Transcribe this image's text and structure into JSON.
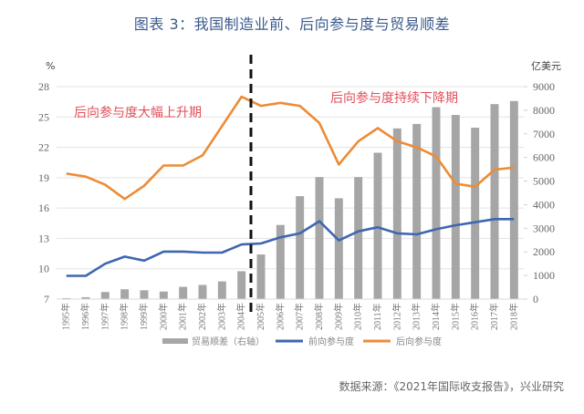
{
  "title": "图表 3：我国制造业前、后向参与度与贸易顺差",
  "source": "数据来源：《2021年国际收支报告》，兴业研究",
  "chart_data": {
    "type": "bar+line",
    "title": "图表 3：我国制造业前、后向参与度与贸易顺差",
    "categories": [
      "1995年",
      "1996年",
      "1997年",
      "1998年",
      "1999年",
      "2000年",
      "2001年",
      "2002年",
      "2003年",
      "2004年",
      "2005年",
      "2006年",
      "2007年",
      "2008年",
      "2009年",
      "2010年",
      "2011年",
      "2012年",
      "2013年",
      "2014年",
      "2015年",
      "2016年",
      "2017年",
      "2018年"
    ],
    "left_axis": {
      "label": "%",
      "ylim": [
        7,
        28
      ],
      "ticks": [
        7,
        10,
        13,
        16,
        19,
        22,
        25,
        28
      ]
    },
    "right_axis": {
      "label": "亿美元",
      "ylim": [
        0,
        9000
      ],
      "ticks": [
        0,
        1000,
        2000,
        3000,
        4000,
        5000,
        6000,
        7000,
        8000,
        9000
      ]
    },
    "series": [
      {
        "name": "贸易顺差（右轴）",
        "type": "bar",
        "axis": "right",
        "color": "#a6a6a6",
        "values": [
          40,
          80,
          300,
          415,
          375,
          320,
          520,
          600,
          750,
          1180,
          1890,
          3140,
          4360,
          5170,
          4270,
          5170,
          6200,
          7230,
          7420,
          8130,
          7800,
          7260,
          8260,
          8390
        ]
      },
      {
        "name": "前向参与度",
        "type": "line",
        "axis": "left",
        "color": "#3f66b0",
        "values": [
          9.3,
          9.3,
          10.5,
          11.2,
          10.8,
          11.7,
          11.7,
          11.6,
          11.6,
          12.4,
          12.5,
          13.1,
          13.5,
          14.7,
          12.8,
          13.7,
          14.1,
          13.5,
          13.4,
          13.9,
          14.3,
          14.6,
          14.9,
          14.9
        ]
      },
      {
        "name": "后向参与度",
        "type": "line",
        "axis": "left",
        "color": "#ed8b36",
        "values": [
          19.4,
          19.1,
          18.3,
          16.9,
          18.2,
          20.2,
          20.2,
          21.2,
          24.1,
          27.0,
          26.1,
          26.4,
          26.1,
          24.4,
          20.3,
          22.6,
          23.9,
          22.6,
          22.0,
          21.1,
          18.4,
          18.1,
          19.8,
          20.0
        ]
      }
    ],
    "annotations": [
      {
        "text": "后向参与度大幅上升期",
        "period": "1995–2004"
      },
      {
        "text": "后向参与度持续下降期",
        "period": "2005–2018"
      }
    ],
    "divider": {
      "between": [
        "2004年",
        "2005年"
      ],
      "style": "dashed"
    },
    "grid": true,
    "legend_position": "bottom"
  }
}
